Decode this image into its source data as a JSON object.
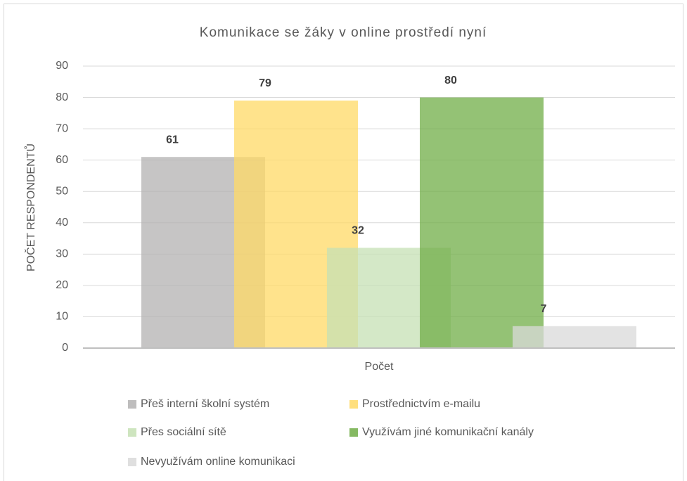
{
  "chart_data": {
    "type": "bar",
    "title": "Komunikace se žáky v online prostředí nyní",
    "y_label": "POČET RESPONDENTŮ",
    "categories": [
      "Počet"
    ],
    "series": [
      {
        "name": "Přeš interní školní systém",
        "color": "#b3b2b1",
        "values": [
          61
        ]
      },
      {
        "name": "Prostřednictvím e-mailu",
        "color": "#ffd966",
        "values": [
          79
        ]
      },
      {
        "name": "Přes sociální sítě",
        "color": "#c5e0b4",
        "values": [
          32
        ]
      },
      {
        "name": "Využívám jiné komunikační kanály",
        "color": "#70ad47",
        "values": [
          80
        ]
      },
      {
        "name": "Nevyužívám online komunikaci",
        "color": "#d9d9d9",
        "values": [
          7
        ]
      }
    ],
    "ylim": [
      0,
      90
    ],
    "yticks": [
      0,
      10,
      20,
      30,
      40,
      50,
      60,
      70,
      80,
      90
    ],
    "grid": true,
    "legend": "bottom"
  }
}
